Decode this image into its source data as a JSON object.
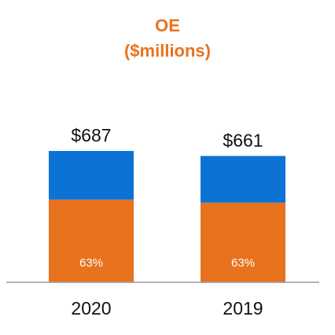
{
  "chart_data": {
    "type": "bar",
    "stacked": true,
    "title": "OE",
    "subtitle": "($millions)",
    "categories": [
      "2020",
      "2019"
    ],
    "totals": [
      "$687",
      "$661"
    ],
    "values": [
      687,
      661
    ],
    "segments": [
      {
        "share": 0.63,
        "label": "63%",
        "color": "#e8731e"
      },
      {
        "share": 0.37,
        "label": "",
        "color": "#0c73d4"
      }
    ],
    "title_color": "#e8731e",
    "axis_color": "#9a9a9a",
    "ylim": [
      0,
      687
    ]
  }
}
